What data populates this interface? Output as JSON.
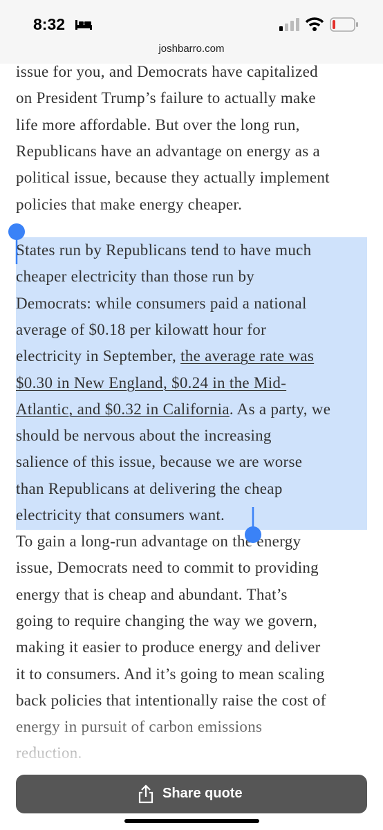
{
  "status_bar": {
    "time": "8:32"
  },
  "address_bar": {
    "url": "joshbarro.com"
  },
  "article": {
    "paragraphs": [
      {
        "lines": [
          "issue for you, and Democrats have capitalized",
          "on President Trump’s failure to actually make",
          "life more affordable. But over the long run,",
          "Republicans have an advantage on energy as a",
          "political issue, because they actually implement",
          "policies that make energy cheaper."
        ]
      },
      {
        "selected": true,
        "lines": [
          [
            {
              "text": "States run by Republicans tend to have much"
            }
          ],
          [
            {
              "text": "cheaper electricity than those run by"
            }
          ],
          [
            {
              "text": "Democrats: while consumers paid a national"
            }
          ],
          [
            {
              "text": "average of $0.18 per kilowatt hour for"
            }
          ],
          [
            {
              "text": "electricity in September, "
            },
            {
              "text": "the average rate was",
              "link": true
            }
          ],
          [
            {
              "text": "$0.30 in New England, $0.24 in the Mid-",
              "link": true
            }
          ],
          [
            {
              "text": "Atlantic, and $0.32 in California",
              "link": true
            },
            {
              "text": ". As a party, we"
            }
          ],
          [
            {
              "text": "should be nervous about the increasing"
            }
          ],
          [
            {
              "text": "salience of this issue, because we are worse"
            }
          ],
          [
            {
              "text": "than Republicans at delivering the cheap"
            }
          ],
          [
            {
              "text": "electricity that consumers want."
            }
          ]
        ]
      },
      {
        "lines": [
          "To gain a long-run advantage on the energy",
          "issue, Democrats need to commit to providing",
          "energy that is cheap and abundant. That’s",
          "going to require changing the way we govern,",
          "making it easier to produce energy and deliver",
          "it to consumers. And it’s going to mean scaling",
          "back policies that intentionally raise the cost of",
          "energy in pursuit of carbon emissions",
          "reduction."
        ]
      }
    ]
  },
  "share_button": {
    "label": "Share quote"
  }
}
